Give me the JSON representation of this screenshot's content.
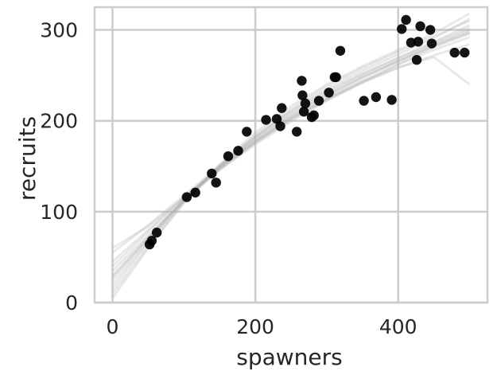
{
  "chart_data": {
    "type": "scatter",
    "xlabel": "spawners",
    "ylabel": "recruits",
    "xlim": [
      -25,
      525
    ],
    "ylim": [
      0,
      325
    ],
    "xticks": [
      0,
      200,
      400
    ],
    "yticks": [
      0,
      100,
      200,
      300
    ],
    "grid": true,
    "colors": {
      "points": "#000000",
      "curves": "#b0b0b0",
      "grid": "#cccccc",
      "spine": "#cccccc",
      "text": "#262626"
    },
    "series": [
      {
        "kind": "scatter",
        "x": [
          52,
          55,
          62,
          104,
          116,
          139,
          145,
          162,
          176,
          188,
          215,
          230,
          235,
          237,
          258,
          265,
          266,
          268,
          270,
          279,
          282,
          289,
          303,
          311,
          313,
          319,
          352,
          369,
          391,
          405,
          411,
          418,
          426,
          428,
          431,
          445,
          447,
          479,
          493
        ],
        "y": [
          64,
          68,
          77,
          116,
          121,
          142,
          132,
          161,
          167,
          188,
          201,
          202,
          194,
          214,
          188,
          244,
          228,
          210,
          219,
          204,
          206,
          222,
          231,
          248,
          248,
          277,
          222,
          226,
          223,
          301,
          311,
          286,
          267,
          287,
          304,
          300,
          285,
          275,
          275
        ]
      },
      {
        "kind": "posterior-curves",
        "x": [
          0,
          50,
          100,
          150,
          200,
          250,
          300,
          350,
          400,
          450,
          500
        ],
        "curves": [
          [
            30,
            72,
            112,
            147,
            178,
            205,
            228,
            248,
            265,
            282,
            297
          ],
          [
            20,
            68,
            112,
            150,
            182,
            210,
            233,
            252,
            269,
            286,
            302
          ],
          [
            40,
            78,
            115,
            148,
            176,
            201,
            223,
            242,
            258,
            272,
            284
          ],
          [
            10,
            62,
            110,
            150,
            184,
            213,
            238,
            258,
            276,
            293,
            310
          ],
          [
            25,
            70,
            113,
            149,
            180,
            206,
            229,
            249,
            266,
            283,
            298
          ],
          [
            55,
            85,
            118,
            150,
            178,
            203,
            224,
            243,
            259,
            270,
            240
          ],
          [
            5,
            60,
            110,
            152,
            187,
            216,
            240,
            260,
            278,
            296,
            318
          ],
          [
            35,
            74,
            112,
            146,
            176,
            203,
            226,
            247,
            266,
            284,
            300
          ],
          [
            15,
            66,
            112,
            151,
            183,
            211,
            235,
            255,
            273,
            291,
            312
          ],
          [
            45,
            80,
            116,
            148,
            177,
            202,
            224,
            244,
            262,
            278,
            292
          ],
          [
            28,
            71,
            114,
            150,
            181,
            208,
            231,
            251,
            269,
            287,
            305
          ],
          [
            60,
            84,
            115,
            146,
            174,
            199,
            222,
            242,
            262,
            281,
            296
          ]
        ]
      }
    ]
  }
}
